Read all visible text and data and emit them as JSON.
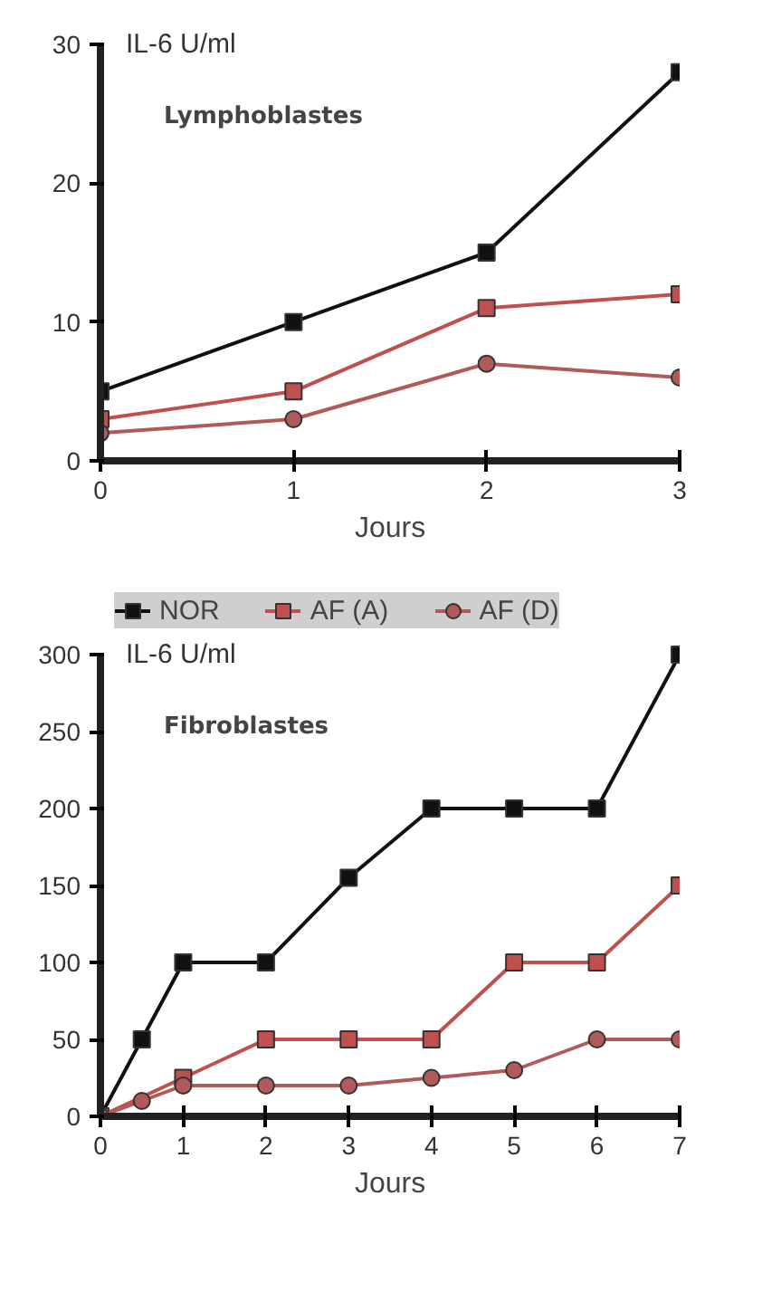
{
  "chart_data": [
    {
      "type": "line",
      "title": "Lymphoblastes",
      "ylabel": "IL-6 U/ml",
      "xlabel": "Jours",
      "x": [
        0,
        1,
        2,
        3
      ],
      "xlim": [
        0,
        3
      ],
      "xticks": [
        0,
        1,
        2,
        3
      ],
      "ylim": [
        0,
        30
      ],
      "yticks": [
        0,
        10,
        20,
        30
      ],
      "grid": false,
      "legend": false,
      "series": [
        {
          "color": "#111111",
          "marker": "square",
          "values": [
            5,
            10,
            15,
            28
          ]
        },
        {
          "color": "#c0504d",
          "marker": "square",
          "values": [
            3,
            5,
            11,
            12
          ]
        },
        {
          "color": "#b05a5a",
          "marker": "circle",
          "values": [
            2,
            3,
            7,
            6
          ]
        }
      ]
    },
    {
      "type": "line",
      "title": "Fibroblastes",
      "ylabel": "IL-6 U/ml",
      "xlabel": "Jours",
      "xlim": [
        0,
        7
      ],
      "xticks": [
        0,
        1,
        2,
        3,
        4,
        5,
        6,
        7
      ],
      "ylim": [
        0,
        300
      ],
      "yticks": [
        0,
        50,
        100,
        150,
        200,
        250,
        300
      ],
      "grid": false,
      "legend": "top",
      "series": [
        {
          "name": "NOR",
          "color": "#111111",
          "marker": "square",
          "x": [
            0,
            0.5,
            1,
            2,
            3,
            4,
            5,
            6,
            7
          ],
          "values": [
            0,
            50,
            100,
            100,
            155,
            200,
            200,
            200,
            300
          ]
        },
        {
          "name": "AF (A)",
          "color": "#c0504d",
          "marker": "square",
          "x": [
            0,
            1,
            2,
            3,
            4,
            5,
            6,
            7
          ],
          "values": [
            0,
            25,
            50,
            50,
            50,
            100,
            100,
            150
          ]
        },
        {
          "name": "AF (D)",
          "color": "#b05a5a",
          "marker": "circle",
          "x": [
            0,
            0.5,
            1,
            2,
            3,
            4,
            5,
            6,
            7
          ],
          "values": [
            0,
            10,
            20,
            20,
            20,
            25,
            30,
            50,
            50
          ]
        }
      ]
    }
  ]
}
